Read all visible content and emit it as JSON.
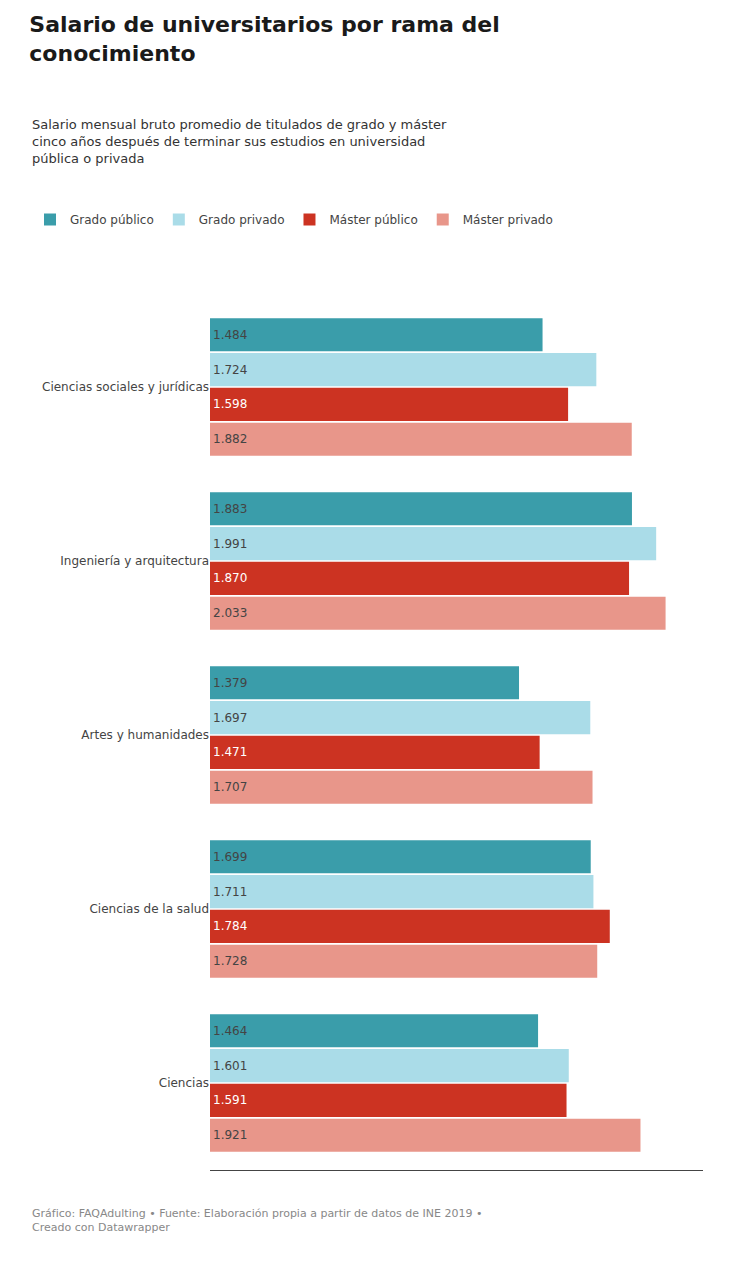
{
  "chart_data": {
    "type": "bar",
    "orientation": "horizontal",
    "title": "Salario de universitarios por rama del\nconocimiento",
    "subtitle": "Salario mensual bruto promedio de titulados de grado y máster\ncinco años después de terminar sus estudios en universidad\npública o privada",
    "annotations": [
      "Gráfico: FAQAdulting • Fuente: Elaboración propia a partir de datos de INE 2019 •\nCreado con Datawrapper"
    ],
    "categories": [
      "Ciencias sociales y jurídicas",
      "Ingeniería y arquitectura",
      "Artes y humanidades",
      "Ciencias de la salud",
      "Ciencias"
    ],
    "series": [
      {
        "name": "Grado público",
        "color": "#3a9daa",
        "values": [
          1484,
          1883,
          1379,
          1699,
          1464
        ],
        "value_labels": [
          "1.484",
          "1.883",
          "1.379",
          "1.699",
          "1.464"
        ]
      },
      {
        "name": "Grado privado",
        "color": "#aadce8",
        "values": [
          1724,
          1991,
          1697,
          1711,
          1601
        ],
        "value_labels": [
          "1.724",
          "1.991",
          "1.697",
          "1.711",
          "1.601"
        ]
      },
      {
        "name": "Máster público",
        "color": "#cc3322",
        "values": [
          1598,
          1870,
          1471,
          1784,
          1591
        ],
        "value_labels": [
          "1.598",
          "1.870",
          "1.471",
          "1.784",
          "1.591"
        ]
      },
      {
        "name": "Máster privado",
        "color": "#e8968a",
        "values": [
          1882,
          2033,
          1707,
          1728,
          1921
        ],
        "value_labels": [
          "1.882",
          "2.033",
          "1.707",
          "1.728",
          "1.921"
        ]
      }
    ],
    "xlim": [
      0,
      2200
    ],
    "data_labels": true,
    "tick_labels": "y",
    "grid": false,
    "legend": "top"
  }
}
